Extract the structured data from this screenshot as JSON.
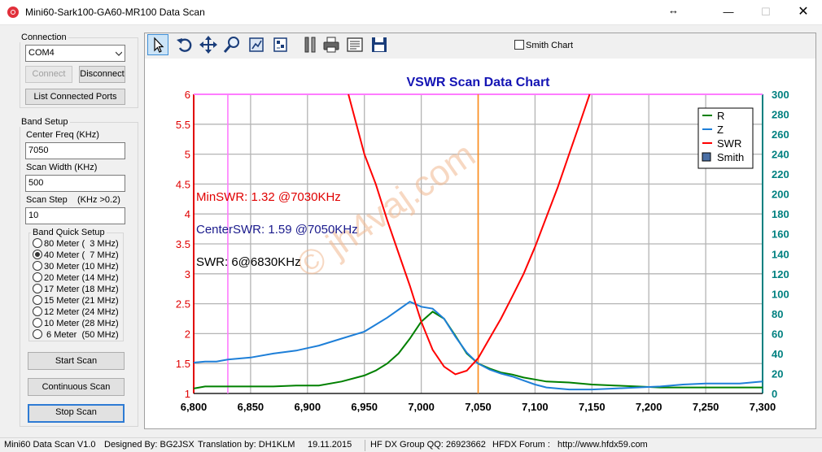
{
  "window": {
    "title": "Mini60-Sark100-GA60-MR100 Data Scan",
    "minimize_glyph": "—",
    "maximize_glyph": "☐",
    "close_glyph": "✕",
    "resize_glyph": "↔"
  },
  "connection": {
    "group_label": "Connection",
    "port_value": "COM4",
    "connect_label": "Connect",
    "disconnect_label": "Disconnect",
    "list_ports_label": "List Connected Ports"
  },
  "band_setup": {
    "group_label": "Band Setup",
    "center_freq_label": "Center Freq  (KHz)",
    "center_freq_value": "7050",
    "scan_width_label": "Scan Width   (KHz)",
    "scan_width_value": "500",
    "scan_step_label": "Scan Step",
    "scan_step_hint": "(KHz >0.2)",
    "scan_step_value": "10",
    "quick_setup_label": "Band Quick Setup",
    "bands": [
      {
        "label": "80 Meter (  3 MHz)",
        "selected": false
      },
      {
        "label": "40 Meter (  7 MHz)",
        "selected": true
      },
      {
        "label": "30 Meter (10 MHz)",
        "selected": false
      },
      {
        "label": "20 Meter (14 MHz)",
        "selected": false
      },
      {
        "label": "17 Meter (18 MHz)",
        "selected": false
      },
      {
        "label": "15 Meter (21 MHz)",
        "selected": false
      },
      {
        "label": "12 Meter (24 MHz)",
        "selected": false
      },
      {
        "label": "10 Meter (28 MHz)",
        "selected": false
      },
      {
        "label": " 6 Meter  (50 MHz)",
        "selected": false
      }
    ],
    "start_scan_label": "Start Scan",
    "continuous_scan_label": "Continuous Scan",
    "stop_scan_label": "Stop Scan"
  },
  "toolbar": {
    "smith_chart_label": "Smith Chart",
    "smith_chart_checked": false,
    "icons": [
      "pointer-icon",
      "undo-icon",
      "pan-icon",
      "zoom-icon",
      "save-image-icon",
      "chart-settings-icon",
      "tools-icon",
      "print-icon",
      "print-preview-icon",
      "save-icon"
    ]
  },
  "status": {
    "version": "Mini60 Data Scan V1.0",
    "designer": "Designed By: BG2JSX",
    "translator": "Translation by: DH1KLM",
    "date": "19.11.2015",
    "group": "HF DX Group QQ: 26923662",
    "forum": "HFDX Forum :   http://www.hfdx59.com"
  },
  "chart_data": {
    "type": "line",
    "title": "VSWR Scan Data Chart",
    "watermark": "© jh4vaj.com",
    "annotations": {
      "min_swr": "MinSWR: 1.32 @7030KHz",
      "center_swr": "CenterSWR: 1.59 @7050KHz",
      "swr_at_marker": "SWR: 6@6830KHz"
    },
    "x": {
      "min": 6800,
      "max": 7300,
      "ticks": [
        6800,
        6850,
        6900,
        6950,
        7000,
        7050,
        7100,
        7150,
        7200,
        7250,
        7300
      ],
      "tick_labels": [
        "6,800",
        "6,850",
        "6,900",
        "6,950",
        "7,000",
        "7,050",
        "7,100",
        "7,150",
        "7,200",
        "7,250",
        "7,300"
      ]
    },
    "y_left": {
      "min": 1,
      "max": 6,
      "ticks": [
        1,
        1.5,
        2,
        2.5,
        3,
        3.5,
        4,
        4.5,
        5,
        5.5,
        6
      ],
      "tick_labels": [
        "1",
        "1.5",
        "2",
        "2.5",
        "3",
        "3.5",
        "4",
        "4.5",
        "5",
        "5.5",
        "6"
      ]
    },
    "y_right": {
      "min": 0,
      "max": 300,
      "ticks": [
        0,
        20,
        40,
        60,
        80,
        100,
        120,
        140,
        160,
        180,
        200,
        220,
        240,
        260,
        280,
        300
      ],
      "tick_labels": [
        "0",
        "20",
        "40",
        "60",
        "80",
        "100",
        "120",
        "140",
        "160",
        "180",
        "200",
        "220",
        "240",
        "260",
        "280",
        "300"
      ]
    },
    "markers": {
      "left_magenta_x": 6830,
      "center_orange_x": 7050
    },
    "series": [
      {
        "name": "R",
        "color": "#008000",
        "axis": "right",
        "x": [
          6800,
          6810,
          6820,
          6850,
          6870,
          6890,
          6910,
          6930,
          6950,
          6960,
          6970,
          6980,
          6990,
          7000,
          7010,
          7020,
          7030,
          7040,
          7050,
          7060,
          7070,
          7080,
          7090,
          7100,
          7110,
          7130,
          7150,
          7170,
          7190,
          7210,
          7250,
          7300
        ],
        "values": [
          5,
          7,
          7,
          7,
          7,
          8,
          8,
          12,
          18,
          23,
          30,
          40,
          55,
          72,
          82,
          75,
          58,
          40,
          30,
          25,
          21,
          19,
          16,
          14,
          12,
          11,
          9,
          8,
          7,
          6,
          6,
          6
        ]
      },
      {
        "name": "Z",
        "color": "#1e7fd8",
        "axis": "right",
        "x": [
          6800,
          6810,
          6820,
          6830,
          6850,
          6870,
          6890,
          6910,
          6930,
          6950,
          6960,
          6970,
          6980,
          6990,
          7000,
          7010,
          7020,
          7030,
          7040,
          7050,
          7060,
          7070,
          7080,
          7090,
          7100,
          7110,
          7130,
          7150,
          7170,
          7190,
          7210,
          7230,
          7250,
          7280,
          7290,
          7300
        ],
        "values": [
          31,
          32,
          32,
          34,
          36,
          40,
          43,
          48,
          55,
          62,
          69,
          76,
          84,
          92,
          87,
          85,
          75,
          57,
          41,
          30,
          24,
          20,
          17,
          13,
          9,
          6,
          4,
          4,
          5,
          6,
          7,
          9,
          10,
          10,
          11,
          12
        ]
      },
      {
        "name": "SWR",
        "color": "#ff0000",
        "axis": "left",
        "x": [
          6936,
          6950,
          6960,
          6970,
          6980,
          6990,
          7000,
          7010,
          7020,
          7030,
          7040,
          7050,
          7060,
          7070,
          7080,
          7090,
          7100,
          7110,
          7120,
          7130,
          7140,
          7148
        ],
        "values": [
          6,
          5.0,
          4.5,
          3.9,
          3.35,
          2.8,
          2.2,
          1.73,
          1.45,
          1.32,
          1.38,
          1.59,
          1.92,
          2.25,
          2.62,
          3.0,
          3.45,
          3.95,
          4.45,
          5.0,
          5.55,
          6
        ]
      }
    ],
    "legend": {
      "position": "top-right",
      "entries": [
        {
          "label": "R",
          "color": "#008000",
          "kind": "line"
        },
        {
          "label": "Z",
          "color": "#1e7fd8",
          "kind": "line"
        },
        {
          "label": "SWR",
          "color": "#ff0000",
          "kind": "line"
        },
        {
          "label": "Smith",
          "color": "#4a6fa5",
          "kind": "box"
        }
      ]
    }
  }
}
